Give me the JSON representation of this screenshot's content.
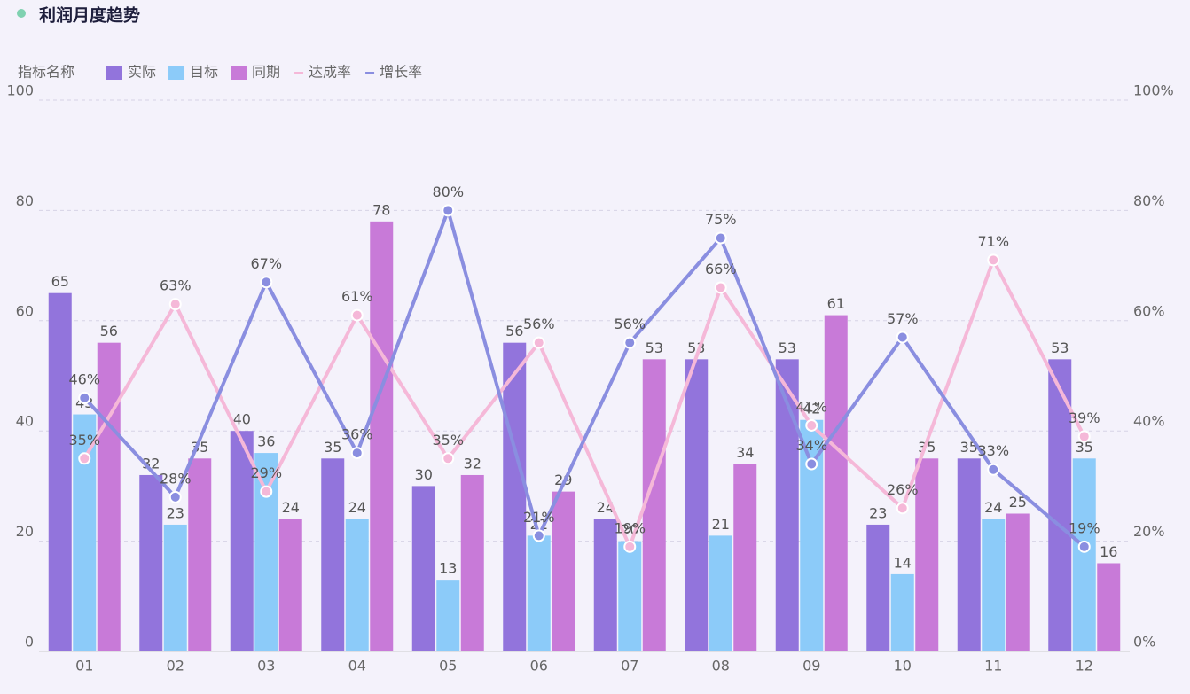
{
  "chart_data": {
    "type": "bar-line",
    "title": "利润月度趋势",
    "legend_title": "指标名称",
    "categories": [
      "01",
      "02",
      "03",
      "04",
      "05",
      "06",
      "07",
      "08",
      "09",
      "10",
      "11",
      "12"
    ],
    "ylim": [
      0,
      100
    ],
    "yticks": [
      0,
      20,
      40,
      60,
      80,
      100
    ],
    "y2lim": [
      0,
      100
    ],
    "y2ticks": [
      {
        "value": 0,
        "label": "0%"
      },
      {
        "value": 20,
        "label": "20%"
      },
      {
        "value": 40,
        "label": "40%"
      },
      {
        "value": 60,
        "label": "60%"
      },
      {
        "value": 80,
        "label": "80%"
      },
      {
        "value": 100,
        "label": "100%"
      }
    ],
    "grid": true,
    "series": [
      {
        "name": "实际",
        "type": "bar",
        "color": "#9274dc",
        "values": [
          65,
          32,
          40,
          35,
          30,
          56,
          24,
          53,
          53,
          23,
          35,
          53
        ]
      },
      {
        "name": "目标",
        "type": "bar",
        "color": "#8ccbf9",
        "values": [
          43,
          23,
          36,
          24,
          13,
          21,
          20,
          21,
          42,
          14,
          24,
          35
        ]
      },
      {
        "name": "同期",
        "type": "bar",
        "color": "#c87ad8",
        "values": [
          56,
          35,
          24,
          78,
          32,
          29,
          53,
          34,
          61,
          35,
          25,
          16
        ]
      },
      {
        "name": "达成率",
        "type": "line",
        "axis": "y2",
        "color": "#f5b8d8",
        "values": [
          35,
          63,
          29,
          61,
          35,
          56,
          19,
          66,
          41,
          26,
          71,
          39
        ],
        "value_labels": [
          "35%",
          "63%",
          "29%",
          "61%",
          "35%",
          "56%",
          "19%",
          "66%",
          "41%",
          "26%",
          "71%",
          "39%"
        ]
      },
      {
        "name": "增长率",
        "type": "line",
        "axis": "y2",
        "color": "#8a8ee0",
        "values": [
          46,
          28,
          67,
          36,
          80,
          21,
          56,
          75,
          34,
          57,
          33,
          19
        ],
        "value_labels": [
          "46%",
          "28%",
          "67%",
          "36%",
          "80%",
          "21%",
          "56%",
          "75%",
          "34%",
          "57%",
          "33%",
          "19%"
        ]
      }
    ]
  }
}
